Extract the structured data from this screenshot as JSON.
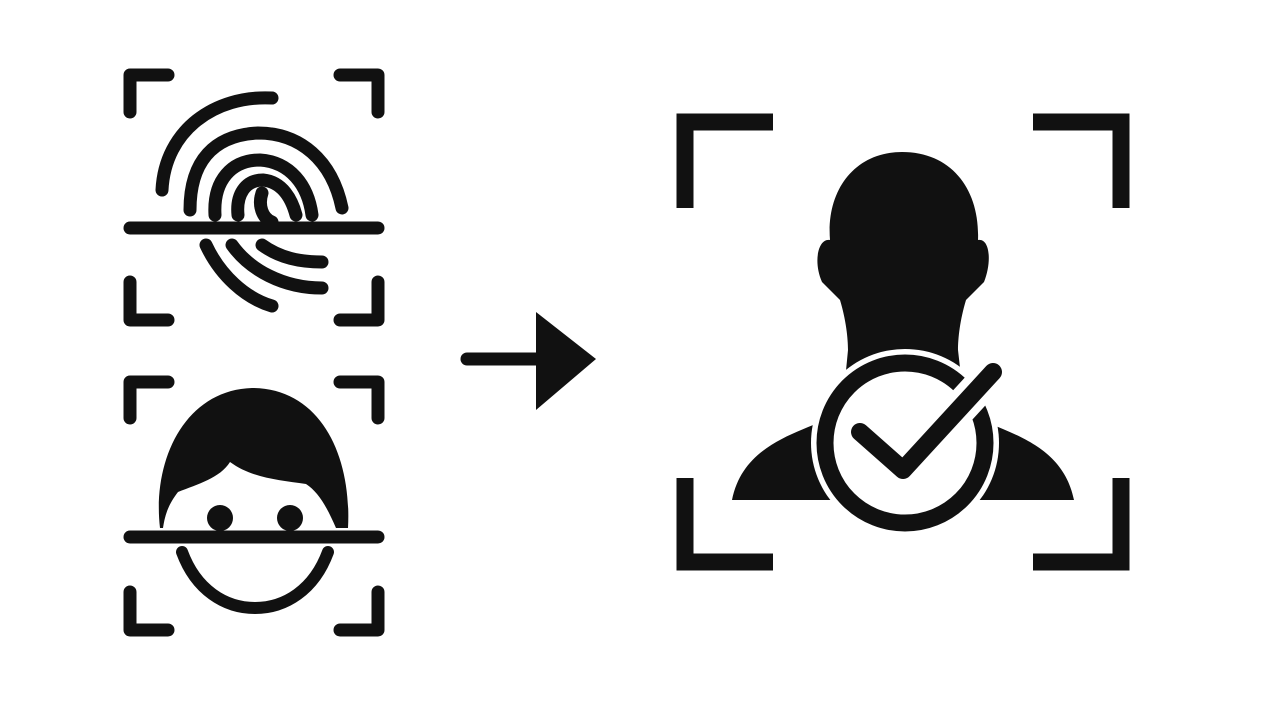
{
  "diagram": {
    "ink_color": "#111111",
    "background_color": "#ffffff",
    "inputs": [
      {
        "icon": "fingerprint-scan-icon"
      },
      {
        "icon": "face-scan-icon"
      }
    ],
    "connector": {
      "icon": "arrow-right-icon",
      "direction": "right"
    },
    "output": {
      "icon": "verified-user-icon",
      "badge": "checkmark-badge-icon"
    }
  }
}
